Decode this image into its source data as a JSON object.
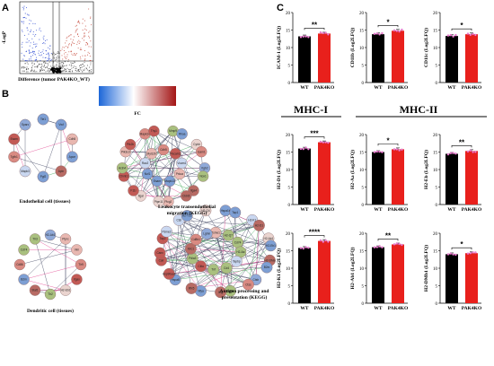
{
  "panels": {
    "a": "A",
    "b": "B",
    "c": "C"
  },
  "panel_a": {
    "ylabel": "-LogP",
    "xlabel": "Difference (tumor PAK4KO_WT)"
  },
  "panel_b": {
    "colorbar_label": "FC",
    "colors": {
      "low": "#2a6fd6",
      "mid": "#ffffff",
      "high": "#b01818"
    },
    "networks": [
      {
        "id": "endo",
        "caption": [
          "Endothelial cell (tissues)"
        ],
        "nodes": [
          "Tie1",
          "Vwf",
          "Cdh5",
          "Apoe",
          "Apln",
          "Pgf2",
          "Mapk3",
          "Tgfb1",
          "Esam",
          "Sparc"
        ]
      },
      {
        "id": "leuk",
        "caption": [
          "Leukocyte transendothelial",
          "migration (KEGG)"
        ],
        "nodes": [
          "Cdh5",
          "Mmp9",
          "Rhoa",
          "Pecam1",
          "Cybb",
          "Icam1",
          "Vcam1",
          "Itgb2",
          "Nox1",
          "Prkca",
          "Itga4",
          "Cldn5",
          "Mapk13",
          "Plcg2",
          "Ptpn11",
          "Esam",
          "Itgal",
          "F11r",
          "Ncf1",
          "Ctnnb1",
          "Actn4",
          "Rac2",
          "Pik3cd",
          "Ptk2b",
          "Myl12b",
          "Mapk14",
          "Thy1"
        ]
      },
      {
        "id": "dend",
        "caption": [
          "Dendritic cell (tissues)"
        ],
        "nodes": [
          "H2-Ab1",
          "Ptprc",
          "Vim",
          "Tlr9",
          "Itgax",
          "H2-Eb1",
          "Tlr2",
          "Stat1",
          "B2m",
          "Cd86",
          "Cd74",
          "Tlr3"
        ]
      },
      {
        "id": "anti",
        "caption": [
          "Antigen processing and",
          "presentation (KEGG)"
        ],
        "nodes": [
          "Psme1",
          "Hspa1b",
          "Tap1",
          "H2-Q7",
          "H2-K1",
          "H2-D1",
          "Cd74",
          "H2-Ab1",
          "H2-Eb1",
          "H2-Aa",
          "H2-DMa",
          "B2m",
          "Tapbp",
          "Ctsb",
          "Ctss",
          "Cd4",
          "Cd8a",
          "Ifng",
          "Tnf",
          "Nfya",
          "Rfx5",
          "Ciita",
          "Hspa8",
          "Hsp90aa1",
          "Pdia3",
          "Calr",
          "Canx",
          "Klrc1",
          "Tap2",
          "Psme2",
          "Cd8b1",
          "Ctsl",
          "H2-T23",
          "Lgmn",
          "H2-Q4"
        ]
      }
    ]
  },
  "panel_c": {
    "group_header_1": "MHC-I",
    "group_header_2": "MHC-II",
    "colors": {
      "WT": "#000000",
      "PAK4KO": "#e8201c",
      "dots": "#f47fd6"
    },
    "charts": [
      {
        "ylabel": "ICAM-1 (Log2LFQ)",
        "yticks": [
          "0",
          "5",
          "10",
          "15",
          "20"
        ],
        "sig": "**"
      },
      {
        "ylabel": "CD11b (Log2LFQ)",
        "yticks": [
          "0",
          "5",
          "10",
          "15",
          "20"
        ],
        "sig": "*"
      },
      {
        "ylabel": "CD11c (Log2LFQ)",
        "yticks": [
          "0",
          "5",
          "10",
          "15",
          "20"
        ],
        "sig": "*"
      },
      {
        "ylabel": "H2-D1 (Log2LFQ)",
        "yticks": [
          "0",
          "5",
          "10",
          "15",
          "20"
        ],
        "sig": "***"
      },
      {
        "ylabel": "H2-Aa (Log2LFQ)",
        "yticks": [
          "0",
          "5",
          "10",
          "15",
          "20"
        ],
        "sig": "*"
      },
      {
        "ylabel": "H2-Eb (Log2LFQ)",
        "yticks": [
          "0",
          "5",
          "10",
          "15",
          "20"
        ],
        "sig": "**"
      },
      {
        "ylabel": "H2-K1 (Log2LFQ)",
        "yticks": [
          "0",
          "5",
          "10",
          "15",
          "20"
        ],
        "sig": "****"
      },
      {
        "ylabel": "H2-Ab1 (Log2LFQ)",
        "yticks": [
          "0",
          "5",
          "10",
          "15",
          "20"
        ],
        "sig": "**"
      },
      {
        "ylabel": "H2-DMb1 (Log2LFQ)",
        "yticks": [
          "0",
          "5",
          "10",
          "15",
          "20"
        ],
        "sig": "*"
      }
    ]
  },
  "chart_data": [
    {
      "type": "bar",
      "ylabel": "ICAM-1 (Log2LFQ)",
      "categories": [
        "WT",
        "PAK4KO"
      ],
      "values": [
        13.2,
        14.0
      ],
      "ylim": [
        0,
        20
      ]
    },
    {
      "type": "bar",
      "ylabel": "CD11b (Log2LFQ)",
      "categories": [
        "WT",
        "PAK4KO"
      ],
      "values": [
        13.8,
        14.8
      ],
      "ylim": [
        0,
        20
      ]
    },
    {
      "type": "bar",
      "ylabel": "CD11c (Log2LFQ)",
      "categories": [
        "WT",
        "PAK4KO"
      ],
      "values": [
        13.3,
        13.8
      ],
      "ylim": [
        0,
        20
      ]
    },
    {
      "type": "bar",
      "ylabel": "H2-D1 (Log2LFQ)",
      "categories": [
        "WT",
        "PAK4KO"
      ],
      "values": [
        16.0,
        17.8
      ],
      "ylim": [
        0,
        20
      ]
    },
    {
      "type": "bar",
      "ylabel": "H2-Aa (Log2LFQ)",
      "categories": [
        "WT",
        "PAK4KO"
      ],
      "values": [
        15.0,
        15.8
      ],
      "ylim": [
        0,
        20
      ]
    },
    {
      "type": "bar",
      "ylabel": "H2-Eb (Log2LFQ)",
      "categories": [
        "WT",
        "PAK4KO"
      ],
      "values": [
        14.5,
        15.3
      ],
      "ylim": [
        0,
        20
      ]
    },
    {
      "type": "bar",
      "ylabel": "H2-K1 (Log2LFQ)",
      "categories": [
        "WT",
        "PAK4KO"
      ],
      "values": [
        15.8,
        17.8
      ],
      "ylim": [
        0,
        20
      ]
    },
    {
      "type": "bar",
      "ylabel": "H2-Ab1 (Log2LFQ)",
      "categories": [
        "WT",
        "PAK4KO"
      ],
      "values": [
        16.0,
        16.8
      ],
      "ylim": [
        0,
        20
      ]
    },
    {
      "type": "bar",
      "ylabel": "H2-DMb1 (Log2LFQ)",
      "categories": [
        "WT",
        "PAK4KO"
      ],
      "values": [
        14.0,
        14.3
      ],
      "ylim": [
        0,
        20
      ]
    }
  ]
}
